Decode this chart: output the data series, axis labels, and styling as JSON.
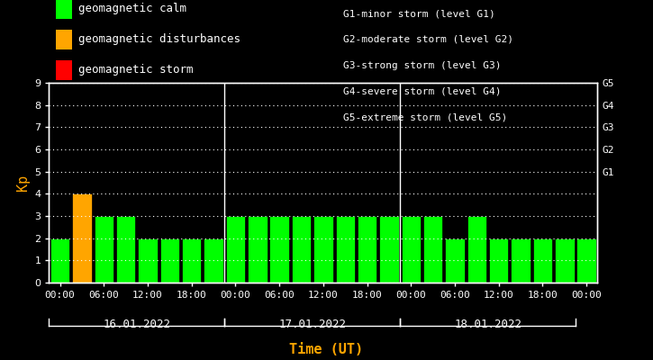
{
  "background_color": "#000000",
  "plot_bg_color": "#000000",
  "text_color": "#ffffff",
  "xlabel_color": "#ffa500",
  "ylabel_color": "#ffa500",
  "grid_color": "#ffffff",
  "kp_values": [
    2,
    4,
    3,
    3,
    2,
    2,
    2,
    2,
    3,
    3,
    3,
    3,
    3,
    3,
    3,
    3,
    3,
    3,
    2,
    3,
    2,
    2,
    2,
    2,
    2
  ],
  "bar_colors": [
    "#00ff00",
    "#ffa500",
    "#00ff00",
    "#00ff00",
    "#00ff00",
    "#00ff00",
    "#00ff00",
    "#00ff00",
    "#00ff00",
    "#00ff00",
    "#00ff00",
    "#00ff00",
    "#00ff00",
    "#00ff00",
    "#00ff00",
    "#00ff00",
    "#00ff00",
    "#00ff00",
    "#00ff00",
    "#00ff00",
    "#00ff00",
    "#00ff00",
    "#00ff00",
    "#00ff00",
    "#00ff00"
  ],
  "ylim": [
    0,
    9
  ],
  "yticks": [
    0,
    1,
    2,
    3,
    4,
    5,
    6,
    7,
    8,
    9
  ],
  "day_labels": [
    "16.01.2022",
    "17.01.2022",
    "18.01.2022"
  ],
  "xlabel": "Time (UT)",
  "ylabel": "Kp",
  "right_labels": [
    "G5",
    "G4",
    "G3",
    "G2",
    "G1"
  ],
  "right_label_yvals": [
    9,
    8,
    7,
    6,
    5
  ],
  "legend_items": [
    {
      "label": "geomagnetic calm",
      "color": "#00ff00"
    },
    {
      "label": "geomagnetic disturbances",
      "color": "#ffa500"
    },
    {
      "label": "geomagnetic storm",
      "color": "#ff0000"
    }
  ],
  "right_text": [
    "G1-minor storm (level G1)",
    "G2-moderate storm (level G2)",
    "G3-strong storm (level G3)",
    "G4-severe storm (level G4)",
    "G5-extreme storm (level G5)"
  ],
  "xtick_labels": [
    "00:00",
    "06:00",
    "12:00",
    "18:00",
    "00:00",
    "06:00",
    "12:00",
    "18:00",
    "00:00",
    "06:00",
    "12:00",
    "18:00",
    "00:00"
  ],
  "xtick_positions": [
    0,
    2,
    4,
    6,
    8,
    10,
    12,
    14,
    16,
    18,
    20,
    22,
    24
  ],
  "font_size": 8,
  "legend_font_size": 9
}
